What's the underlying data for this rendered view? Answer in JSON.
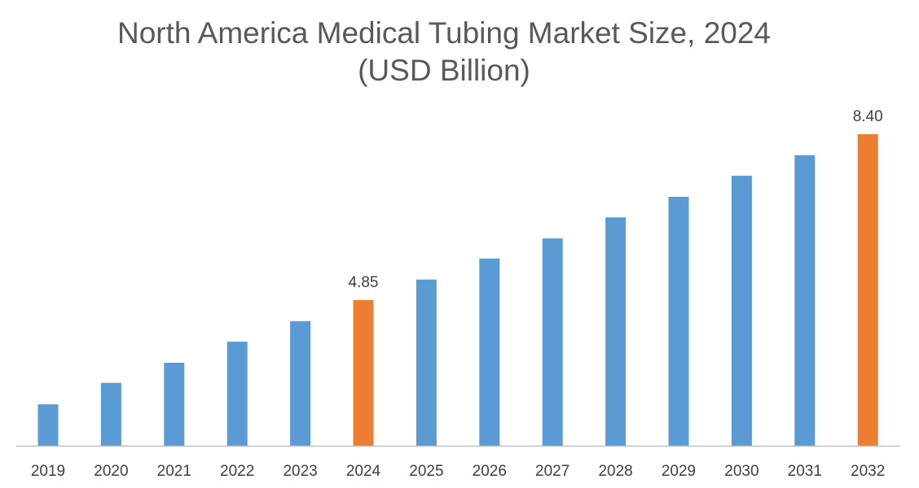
{
  "chart_data": {
    "type": "bar",
    "title": "North America Medical Tubing Market Size, 2024",
    "subtitle": "(USD Billion)",
    "categories": [
      "2019",
      "2020",
      "2021",
      "2022",
      "2023",
      "2024",
      "2025",
      "2026",
      "2027",
      "2028",
      "2029",
      "2030",
      "2031",
      "2032"
    ],
    "values": [
      2.62,
      3.08,
      3.51,
      3.96,
      4.4,
      4.85,
      5.29,
      5.74,
      6.17,
      6.62,
      7.06,
      7.51,
      7.95,
      8.4
    ],
    "data_labels": {
      "2024": "4.85",
      "2032": "8.40"
    },
    "highlight": [
      "2024",
      "2032"
    ],
    "colors": {
      "default": "#5b9bd5",
      "highlight": "#ed7d31",
      "axis": "#bfbfbf"
    },
    "xlabel": "",
    "ylabel": "",
    "grid": false,
    "legend": "none"
  }
}
